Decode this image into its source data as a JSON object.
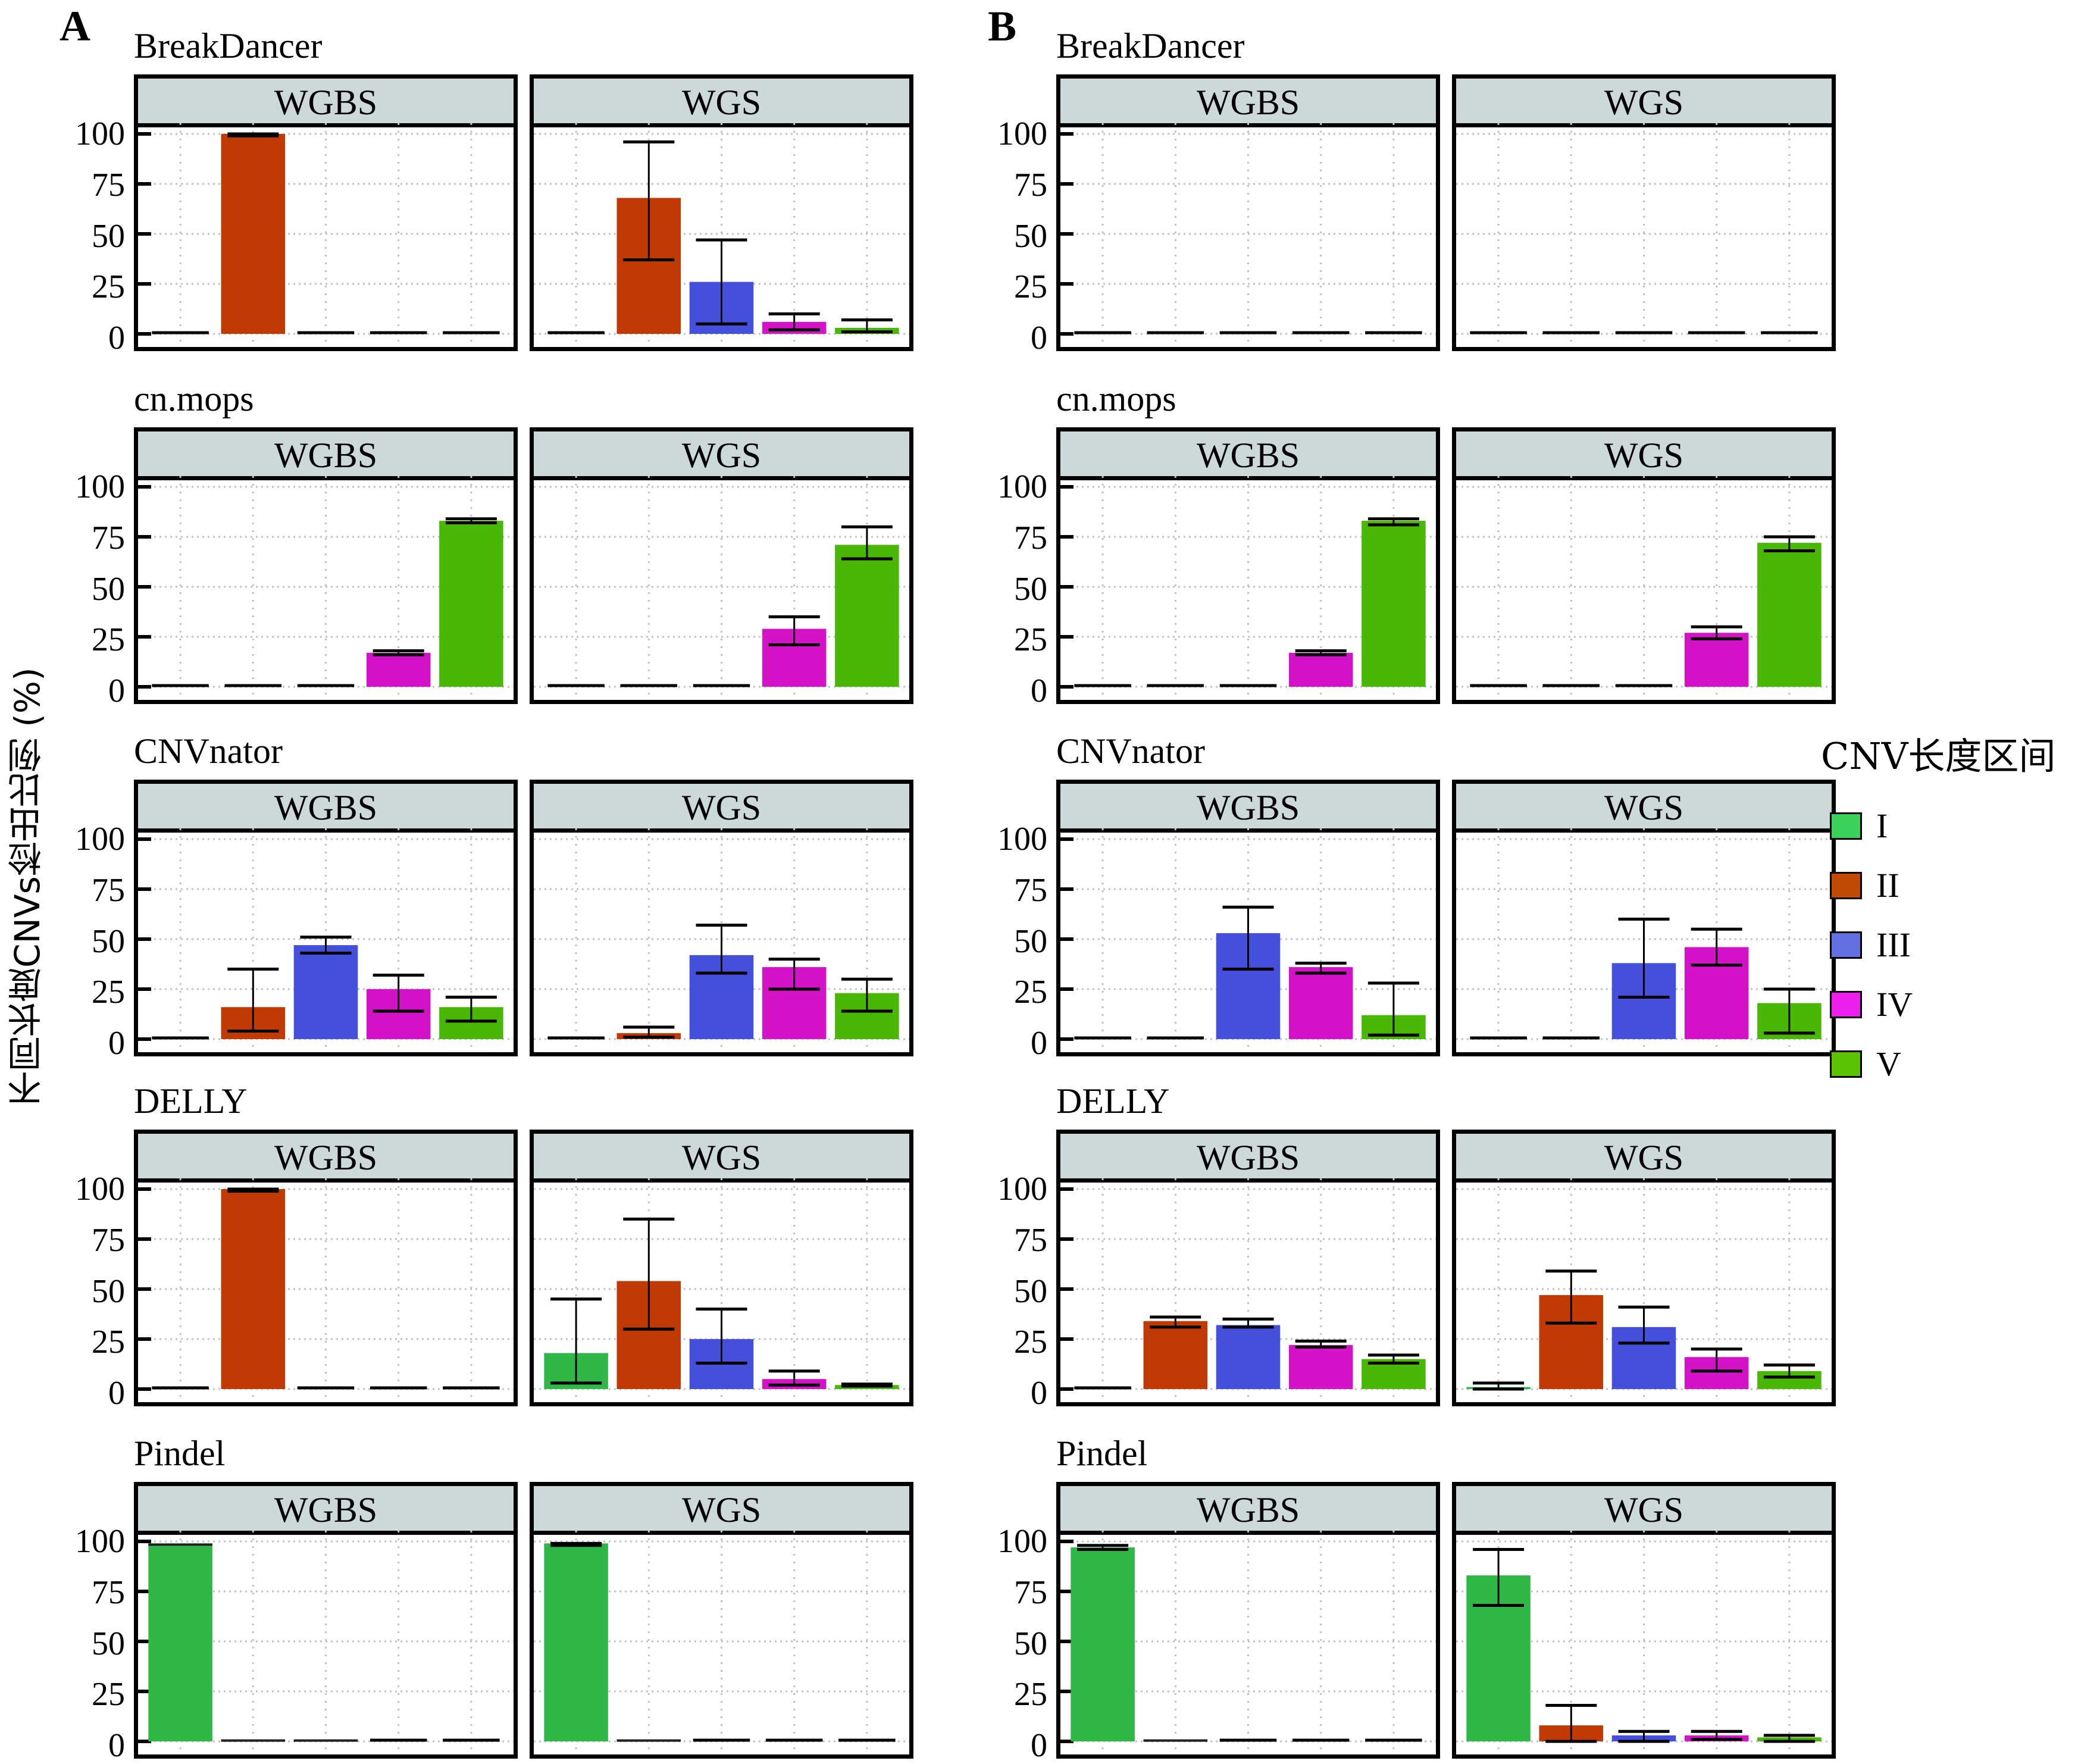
{
  "figure": {
    "y_axis_label": "不同长度CNVs检出比例 (%)",
    "legend": {
      "title": "CNV长度区间",
      "items": [
        {
          "label": "I",
          "color": "#3bd35a"
        },
        {
          "label": "II",
          "color": "#c04a04"
        },
        {
          "label": "III",
          "color": "#6270e2"
        },
        {
          "label": "IV",
          "color": "#ec1eec"
        },
        {
          "label": "V",
          "color": "#5ac404"
        }
      ]
    },
    "facet_labels": [
      "WGBS",
      "WGS"
    ],
    "yticks": [
      "100",
      "75",
      "50",
      "25",
      "0"
    ]
  },
  "chart_data": {
    "type": "bar",
    "title": "",
    "xlabel": "",
    "ylabel": "不同长度CNVs检出比例 (%)",
    "ylim": [
      0,
      100
    ],
    "yticks": [
      0,
      25,
      50,
      75,
      100
    ],
    "grid": true,
    "legend_position": "right",
    "categories": [
      "I",
      "II",
      "III",
      "IV",
      "V"
    ],
    "bar_colors": {
      "I": "#2fb845",
      "II": "#c13a04",
      "III": "#4450dc",
      "IV": "#d412c8",
      "V": "#48b804"
    },
    "panels": [
      {
        "letter": "A",
        "methods": [
          {
            "name": "BreakDancer",
            "facets": [
              {
                "label": "WGBS",
                "values": [
                  0,
                  100,
                  0,
                  0,
                  0
                ],
                "err_low": [
                  0,
                  99,
                  0,
                  0,
                  0
                ],
                "err_high": [
                  0,
                  100,
                  0,
                  0,
                  0
                ]
              },
              {
                "label": "WGS",
                "values": [
                  0,
                  68,
                  26,
                  6,
                  3
                ],
                "err_low": [
                  0,
                  37,
                  5,
                  2,
                  1
                ],
                "err_high": [
                  0,
                  96,
                  47,
                  10,
                  7
                ]
              }
            ]
          },
          {
            "name": "cn.mops",
            "facets": [
              {
                "label": "WGBS",
                "values": [
                  0,
                  0,
                  0,
                  17,
                  83
                ],
                "err_low": [
                  0,
                  0,
                  0,
                  16,
                  82
                ],
                "err_high": [
                  0,
                  0,
                  0,
                  18,
                  84
                ]
              },
              {
                "label": "WGS",
                "values": [
                  0,
                  0,
                  0,
                  29,
                  71
                ],
                "err_low": [
                  0,
                  0,
                  0,
                  21,
                  64
                ],
                "err_high": [
                  0,
                  0,
                  0,
                  35,
                  80
                ]
              }
            ]
          },
          {
            "name": "CNVnator",
            "facets": [
              {
                "label": "WGBS",
                "values": [
                  0,
                  16,
                  47,
                  25,
                  16
                ],
                "err_low": [
                  0,
                  4,
                  43,
                  14,
                  9
                ],
                "err_high": [
                  0,
                  35,
                  51,
                  32,
                  21
                ]
              },
              {
                "label": "WGS",
                "values": [
                  0,
                  3,
                  42,
                  36,
                  23
                ],
                "err_low": [
                  0,
                  1,
                  33,
                  25,
                  14
                ],
                "err_high": [
                  0,
                  6,
                  57,
                  40,
                  30
                ]
              }
            ]
          },
          {
            "name": "DELLY",
            "facets": [
              {
                "label": "WGBS",
                "values": [
                  0,
                  100,
                  0,
                  0,
                  0
                ],
                "err_low": [
                  0,
                  99,
                  0,
                  0,
                  0
                ],
                "err_high": [
                  0,
                  100,
                  0,
                  0,
                  0
                ]
              },
              {
                "label": "WGS",
                "values": [
                  18,
                  54,
                  25,
                  5,
                  2
                ],
                "err_low": [
                  3,
                  30,
                  13,
                  2,
                  1.5
                ],
                "err_high": [
                  45,
                  85,
                  40,
                  9,
                  2.5
                ]
              }
            ]
          },
          {
            "name": "Pindel",
            "facets": [
              {
                "label": "WGBS",
                "values": [
                  99,
                  1,
                  1,
                  0,
                  0
                ],
                "err_low": [
                  99,
                  1,
                  1,
                  0,
                  0
                ],
                "err_high": [
                  99,
                  1,
                  1,
                  0,
                  0
                ]
              },
              {
                "label": "WGS",
                "values": [
                  99,
                  1,
                  0,
                  0,
                  0
                ],
                "err_low": [
                  98,
                  1,
                  0,
                  0,
                  0
                ],
                "err_high": [
                  99,
                  1,
                  0,
                  0,
                  0
                ]
              }
            ]
          }
        ]
      },
      {
        "letter": "B",
        "methods": [
          {
            "name": "BreakDancer",
            "facets": [
              {
                "label": "WGBS",
                "values": [
                  0,
                  0,
                  0,
                  0,
                  0
                ],
                "err_low": [
                  0,
                  0,
                  0,
                  0,
                  0
                ],
                "err_high": [
                  0,
                  0,
                  0,
                  0,
                  0
                ]
              },
              {
                "label": "WGS",
                "values": [
                  0,
                  0,
                  0,
                  0,
                  0
                ],
                "err_low": [
                  0,
                  0,
                  0,
                  0,
                  0
                ],
                "err_high": [
                  0,
                  0,
                  0,
                  0,
                  0
                ]
              }
            ]
          },
          {
            "name": "cn.mops",
            "facets": [
              {
                "label": "WGBS",
                "values": [
                  0,
                  0,
                  0,
                  17,
                  83
                ],
                "err_low": [
                  0,
                  0,
                  0,
                  16,
                  81
                ],
                "err_high": [
                  0,
                  0,
                  0,
                  18,
                  84
                ]
              },
              {
                "label": "WGS",
                "values": [
                  0,
                  0,
                  0,
                  27,
                  72
                ],
                "err_low": [
                  0,
                  0,
                  0,
                  24,
                  68
                ],
                "err_high": [
                  0,
                  0,
                  0,
                  30,
                  75
                ]
              }
            ]
          },
          {
            "name": "CNVnator",
            "facets": [
              {
                "label": "WGBS",
                "values": [
                  0,
                  0.5,
                  53,
                  36,
                  12
                ],
                "err_low": [
                  0,
                  0.5,
                  35,
                  33,
                  2
                ],
                "err_high": [
                  0,
                  0.5,
                  66,
                  38,
                  28
                ]
              },
              {
                "label": "WGS",
                "values": [
                  0,
                  0.5,
                  38,
                  46,
                  18
                ],
                "err_low": [
                  0,
                  0.5,
                  21,
                  37,
                  3
                ],
                "err_high": [
                  0,
                  0.5,
                  60,
                  55,
                  25
                ]
              }
            ]
          },
          {
            "name": "DELLY",
            "facets": [
              {
                "label": "WGBS",
                "values": [
                  0.5,
                  34,
                  32,
                  22,
                  15
                ],
                "err_low": [
                  0.5,
                  31,
                  31,
                  21,
                  13
                ],
                "err_high": [
                  0.5,
                  36,
                  35,
                  24,
                  17
                ]
              },
              {
                "label": "WGS",
                "values": [
                  1,
                  47,
                  31,
                  16,
                  9
                ],
                "err_low": [
                  0,
                  33,
                  23,
                  9,
                  6
                ],
                "err_high": [
                  3,
                  59,
                  41,
                  20,
                  12
                ]
              }
            ]
          },
          {
            "name": "Pindel",
            "facets": [
              {
                "label": "WGBS",
                "values": [
                  97,
                  1,
                  0.5,
                  0,
                  0
                ],
                "err_low": [
                  96,
                  1,
                  0.5,
                  0,
                  0
                ],
                "err_high": [
                  98,
                  1,
                  0.5,
                  0,
                  0
                ]
              },
              {
                "label": "WGS",
                "values": [
                  83,
                  8,
                  3,
                  3,
                  2
                ],
                "err_low": [
                  68,
                  0,
                  0,
                  1,
                  0
                ],
                "err_high": [
                  96,
                  18,
                  5,
                  5,
                  3
                ]
              }
            ]
          }
        ]
      }
    ]
  }
}
